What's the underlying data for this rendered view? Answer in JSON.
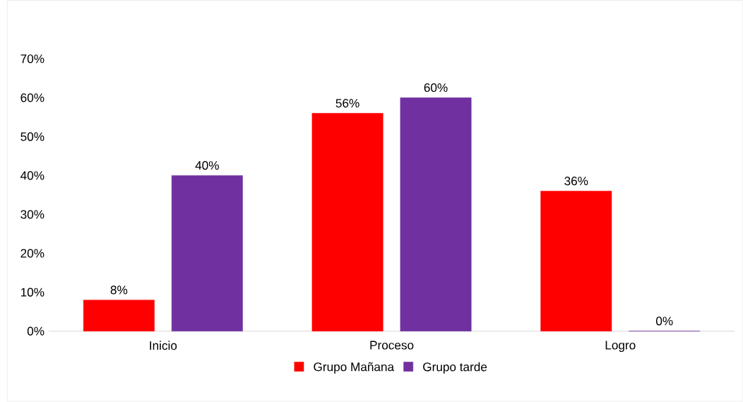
{
  "chart_data": {
    "type": "bar",
    "categories": [
      "Inicio",
      "Proceso",
      "Logro"
    ],
    "series": [
      {
        "name": "Grupo Mañana",
        "color": "#ff0000",
        "values": [
          8,
          56,
          36
        ],
        "value_labels": [
          "8%",
          "56%",
          "36%"
        ]
      },
      {
        "name": "Grupo tarde",
        "color": "#7030a0",
        "values": [
          40,
          60,
          0
        ],
        "value_labels": [
          "40%",
          "60%",
          "0%"
        ]
      }
    ],
    "ylim": [
      0,
      70
    ],
    "yticks": [
      {
        "value": 0,
        "label": "0%"
      },
      {
        "value": 10,
        "label": "10%"
      },
      {
        "value": 20,
        "label": "20%"
      },
      {
        "value": 30,
        "label": "30%"
      },
      {
        "value": 40,
        "label": "40%"
      },
      {
        "value": 50,
        "label": "50%"
      },
      {
        "value": 60,
        "label": "60%"
      },
      {
        "value": 70,
        "label": "70%"
      }
    ],
    "legend": "bottom"
  }
}
